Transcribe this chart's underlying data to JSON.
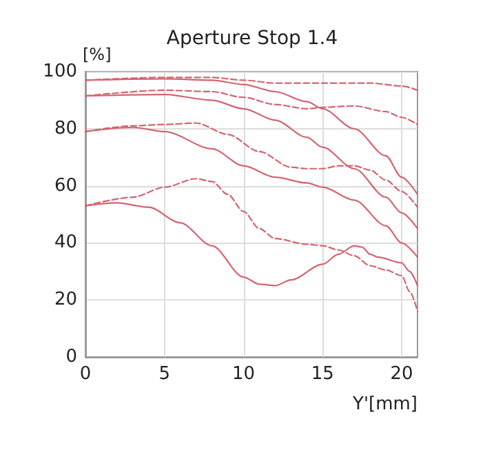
{
  "chart_data": {
    "type": "line",
    "title": "Aperture Stop 1.4",
    "xlabel": "Y'[mm]",
    "ylabel": "[%]",
    "xlim": [
      0,
      21
    ],
    "xticks": [
      0,
      5,
      10,
      15,
      20
    ],
    "ylim": [
      0,
      100
    ],
    "yticks": [
      0,
      20,
      40,
      60,
      80,
      100
    ],
    "grid": true,
    "marker": "none",
    "series": [
      {
        "color": "#d46470",
        "line_style": "solid",
        "x": [
          0,
          5,
          8,
          10,
          12,
          14,
          15,
          17,
          19,
          20,
          21
        ],
        "values": [
          97,
          97.5,
          97,
          95.5,
          93,
          89.5,
          87,
          80,
          70.5,
          63,
          57
        ]
      },
      {
        "color": "#d46470",
        "line_style": "dashed",
        "x": [
          0,
          5,
          8,
          10,
          12,
          15,
          18,
          20,
          21
        ],
        "values": [
          97,
          98,
          98,
          97,
          96,
          96,
          96,
          95,
          93.5
        ]
      },
      {
        "color": "#d46470",
        "line_style": "solid",
        "x": [
          0,
          5,
          8,
          10,
          12,
          14,
          15,
          17,
          19,
          20,
          21
        ],
        "values": [
          91.5,
          92,
          90,
          87,
          83,
          77,
          73.5,
          66,
          56,
          50.5,
          45
        ]
      },
      {
        "color": "#d46470",
        "line_style": "dashed",
        "x": [
          0,
          5,
          8,
          10,
          12,
          14,
          15,
          17,
          19,
          20,
          21
        ],
        "values": [
          91.5,
          93.5,
          93,
          91,
          88.5,
          87,
          87.5,
          88,
          86,
          84,
          81.5
        ]
      },
      {
        "color": "#d46470",
        "line_style": "solid",
        "x": [
          0,
          3,
          5,
          8,
          10,
          12,
          14,
          15,
          17,
          19,
          20,
          21
        ],
        "values": [
          79,
          80.5,
          79,
          73,
          67,
          63,
          61,
          59.5,
          55,
          46,
          40,
          35
        ]
      },
      {
        "color": "#d46470",
        "line_style": "dashed",
        "x": [
          0,
          3,
          5,
          7,
          9,
          11,
          13,
          14,
          15,
          16,
          17,
          18,
          19,
          20,
          21
        ],
        "values": [
          79,
          81,
          81.5,
          82,
          78,
          72,
          66.5,
          66,
          66,
          67,
          67,
          65.5,
          62,
          58,
          52.5
        ]
      },
      {
        "color": "#d46470",
        "line_style": "solid",
        "x": [
          0,
          2,
          4,
          6,
          8,
          10,
          11,
          12,
          13,
          15,
          16,
          17,
          17.5,
          18,
          18.5,
          20,
          20.5,
          21
        ],
        "values": [
          53,
          54,
          52.5,
          47,
          39,
          28,
          25.5,
          25,
          27,
          32.5,
          36,
          39,
          38.5,
          36,
          35,
          33,
          30,
          25
        ]
      },
      {
        "color": "#d46470",
        "line_style": "dashed",
        "x": [
          0,
          3,
          5,
          7,
          8,
          9,
          10,
          11,
          12,
          14,
          15,
          16,
          17,
          18,
          19,
          20,
          20.5,
          21
        ],
        "values": [
          53,
          56,
          59.5,
          62.5,
          61.5,
          57,
          51,
          45,
          41.5,
          39.5,
          39,
          37.5,
          35.5,
          32,
          30.5,
          28.5,
          23,
          16
        ]
      }
    ]
  }
}
